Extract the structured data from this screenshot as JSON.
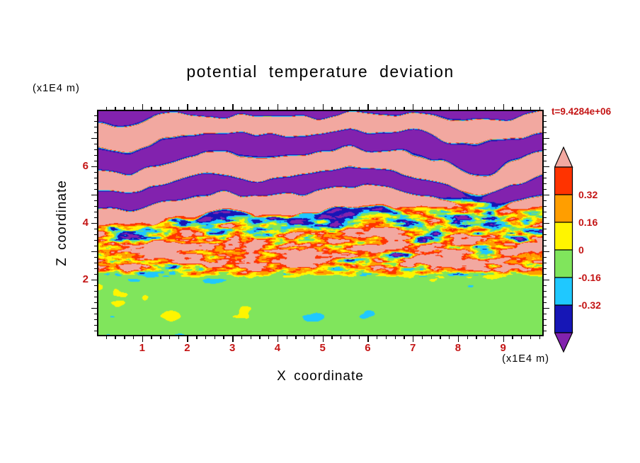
{
  "title": "potential temperature deviation",
  "time_label": "t=9.4284e+06",
  "colors": {
    "annotation_red": "#C41414",
    "frame": "#000000",
    "background": "#FFFFFF"
  },
  "axes": {
    "x": {
      "label": "X coordinate",
      "unit_label": "(x1E4 m)",
      "min": 0,
      "max": 9.9,
      "major_ticks": [
        1,
        2,
        3,
        4,
        5,
        6,
        7,
        8,
        9
      ],
      "minor_step": 0.2
    },
    "z": {
      "label": "Z coordinate",
      "unit_label": "(x1E4 m)",
      "min": 0,
      "max": 8.0,
      "labeled_ticks": [
        2,
        4,
        6
      ],
      "minor_step": 0.2
    }
  },
  "colorbar": {
    "boundary_labels": [
      "0.32",
      "0.16",
      "0",
      "-0.16",
      "-0.32"
    ],
    "colors_top_to_bottom": [
      "#F2A8A0",
      "#FF3300",
      "#FF9E00",
      "#FFF500",
      "#80E55C",
      "#1FC8FF",
      "#1616B6",
      "#8222AE"
    ]
  },
  "chart_data": {
    "type": "heatmap",
    "subtype": "filled_contour_snapshot",
    "title": "potential temperature deviation",
    "xlabel": "X coordinate",
    "ylabel": "Z coordinate",
    "x_unit": "x1E4 m",
    "z_unit": "x1E4 m",
    "xlim": [
      0,
      9.9
    ],
    "zlim": [
      0,
      8.0
    ],
    "x_ticks": [
      1,
      2,
      3,
      4,
      5,
      6,
      7,
      8,
      9
    ],
    "z_ticks": [
      2,
      4,
      6
    ],
    "time_annotation": "t=9.4284e+06",
    "contour_levels": [
      -0.48,
      -0.32,
      -0.16,
      0,
      0.16,
      0.32,
      0.48
    ],
    "labeled_levels": [
      -0.32,
      -0.16,
      0,
      0.16,
      0.32
    ],
    "palette_low_to_high": [
      "#8222AE",
      "#1616B6",
      "#1FC8FF",
      "#80E55C",
      "#FFF500",
      "#FF9E00",
      "#FF3300",
      "#F2A8A0"
    ],
    "field_description": [
      {
        "zone": "mixed layer",
        "z_range_x1E4_m": [
          0,
          2.0
        ],
        "values": "near zero (green, -0.16 to 0) with sparse warm wisps"
      },
      {
        "zone": "entrainment / turbulent layer",
        "z_range_x1E4_m": [
          2.0,
          4.3
        ],
        "values": "fine-scale mottling over full range with warm bias (yellow/orange/red) and cold filaments (cyan/blue/purple)"
      },
      {
        "zone": "stratified gravity-wave region",
        "z_range_x1E4_m": [
          4.3,
          8.0
        ],
        "values": "broad alternating horizontal bands above +0.48 (salmon) and below -0.48 (purple)"
      }
    ],
    "render_params": {
      "interface_z": 2.02,
      "interface_wiggle": 0.5,
      "turbulence_top_z": 4.25,
      "turbulence_top_wiggle": 1.6,
      "bottom_bias": -0.07,
      "bottom_amp": 0.16,
      "mid_bias": 0.16,
      "mid_amp1": 0.95,
      "mid_amp2": 0.65,
      "warm_band_z": 2.75,
      "warm_band_w": 0.65,
      "warm_band_amp": 0.22,
      "cool_shift_amp": 0.12,
      "wave_freq_z": 4.4,
      "wave_phase_noise": 3.5,
      "wave_phase0": 0.9,
      "wave_bias": 0.1,
      "wave_amp": 0.95,
      "wave_sharpen": 0.3
    }
  }
}
